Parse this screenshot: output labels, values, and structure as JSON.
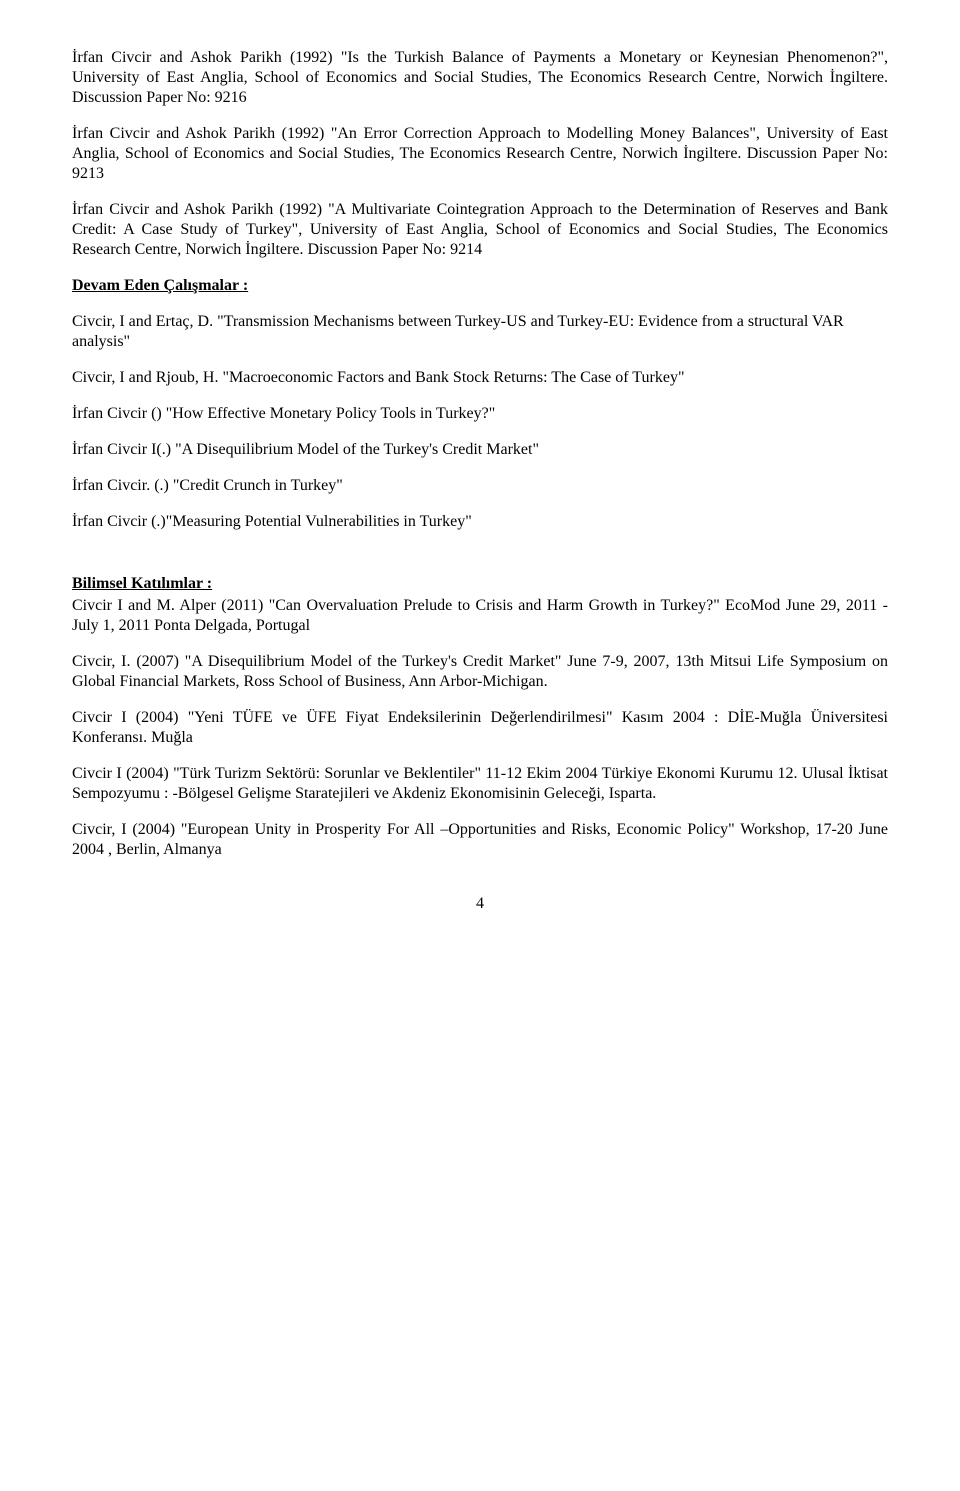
{
  "papers": {
    "p1": "İrfan Civcir and Ashok Parikh (1992) \"Is the Turkish Balance of Payments a Monetary or Keynesian Phenomenon?\", University of East Anglia, School of Economics and Social Studies, The Economics Research Centre, Norwich İngiltere. Discussion Paper No: 9216",
    "p2": "İrfan Civcir and Ashok Parikh (1992) \"An Error Correction Approach to Modelling Money Balances\", University of East Anglia, School of Economics and Social Studies, The Economics Research Centre, Norwich İngiltere. Discussion Paper No: 9213",
    "p3": "İrfan Civcir and Ashok Parikh (1992) \"A Multivariate Cointegration Approach to the Determination of Reserves and Bank Credit: A Case Study of Turkey\", University of East Anglia, School of Economics and Social Studies, The Economics Research Centre, Norwich İngiltere. Discussion Paper No: 9214"
  },
  "ongoing": {
    "heading": "Devam Eden Çalışmalar :",
    "items": [
      "Civcir, I and Ertaç, D. \"Transmission Mechanisms between Turkey-US and Turkey-EU: Evidence from a structural VAR analysis\"",
      "Civcir, I and Rjoub, H. \"Macroeconomic Factors and Bank Stock Returns: The Case of Turkey\"",
      "İrfan Civcir () \"How Effective Monetary Policy Tools in Turkey?\"",
      "İrfan Civcir I(.) \"A Disequilibrium Model of the Turkey's Credit Market\"",
      "İrfan Civcir. (.) \"Credit Crunch in Turkey\"",
      "İrfan Civcir (.)\"Measuring Potential Vulnerabilities in Turkey\""
    ]
  },
  "participation": {
    "heading": "Bilimsel Katılımlar :",
    "items": [
      "Civcir I and M. Alper (2011) \"Can Overvaluation Prelude to Crisis and Harm Growth in Turkey?\" EcoMod June 29, 2011 - July 1, 2011  Ponta Delgada, Portugal",
      "Civcir, I. (2007) \"A Disequilibrium Model of the Turkey's Credit Market\" June 7-9, 2007, 13th Mitsui Life Symposium on Global Financial Markets,  Ross School of Business, Ann Arbor-Michigan.",
      "Civcir I (2004) \"Yeni TÜFE ve ÜFE  Fiyat Endeksilerinin Değerlendirilmesi\" Kasım 2004 : DİE-Muğla Üniversitesi Konferansı.  Muğla",
      "Civcir I (2004) \"Türk Turizm Sektörü: Sorunlar ve Beklentiler\" 11-12 Ekim 2004 Türkiye Ekonomi Kurumu 12. Ulusal İktisat Sempozyumu : -Bölgesel Gelişme Staratejileri ve Akdeniz Ekonomisinin Geleceği, Isparta.",
      "Civcir, I (2004) \"European Unity in Prosperity For All –Opportunities and Risks, Economic Policy\" Workshop, 17-20 June 2004 , Berlin, Almanya"
    ]
  },
  "page_number": "4"
}
